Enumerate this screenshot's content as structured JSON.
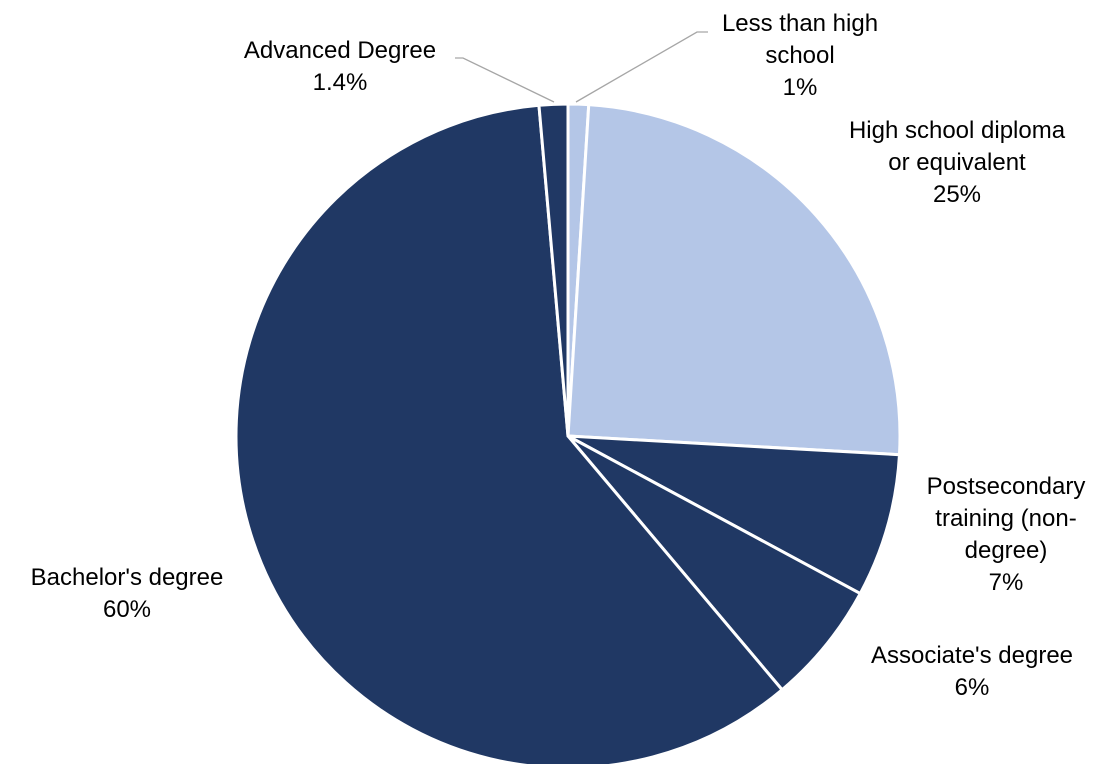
{
  "chart_data": {
    "type": "pie",
    "title": "",
    "legend": "none",
    "start_direction": "12 o'clock",
    "direction": "clockwise",
    "slices": [
      {
        "label": "Less than high school",
        "value": 1,
        "value_label": "1%",
        "color": "#B4C6E7",
        "label_lines": [
          "Less than high",
          "school",
          "1%"
        ]
      },
      {
        "label": "High school diploma or equivalent",
        "value": 25,
        "value_label": "25%",
        "color": "#B4C6E7",
        "label_lines": [
          "High school diploma",
          "or equivalent",
          "25%"
        ]
      },
      {
        "label": "Postsecondary training (non-degree)",
        "value": 7,
        "value_label": "7%",
        "color": "#203864",
        "label_lines": [
          "Postsecondary",
          "training (non-",
          "degree)",
          "7%"
        ]
      },
      {
        "label": "Associate's degree",
        "value": 6,
        "value_label": "6%",
        "color": "#203864",
        "label_lines": [
          "Associate's degree",
          "6%"
        ]
      },
      {
        "label": "Bachelor's degree",
        "value": 60,
        "value_label": "60%",
        "color": "#203864",
        "label_lines": [
          "Bachelor's degree",
          "60%"
        ]
      },
      {
        "label": "Advanced Degree",
        "value": 1.4,
        "value_label": "1.4%",
        "color": "#203864",
        "label_lines": [
          "Advanced Degree",
          "1.4%"
        ]
      }
    ]
  }
}
